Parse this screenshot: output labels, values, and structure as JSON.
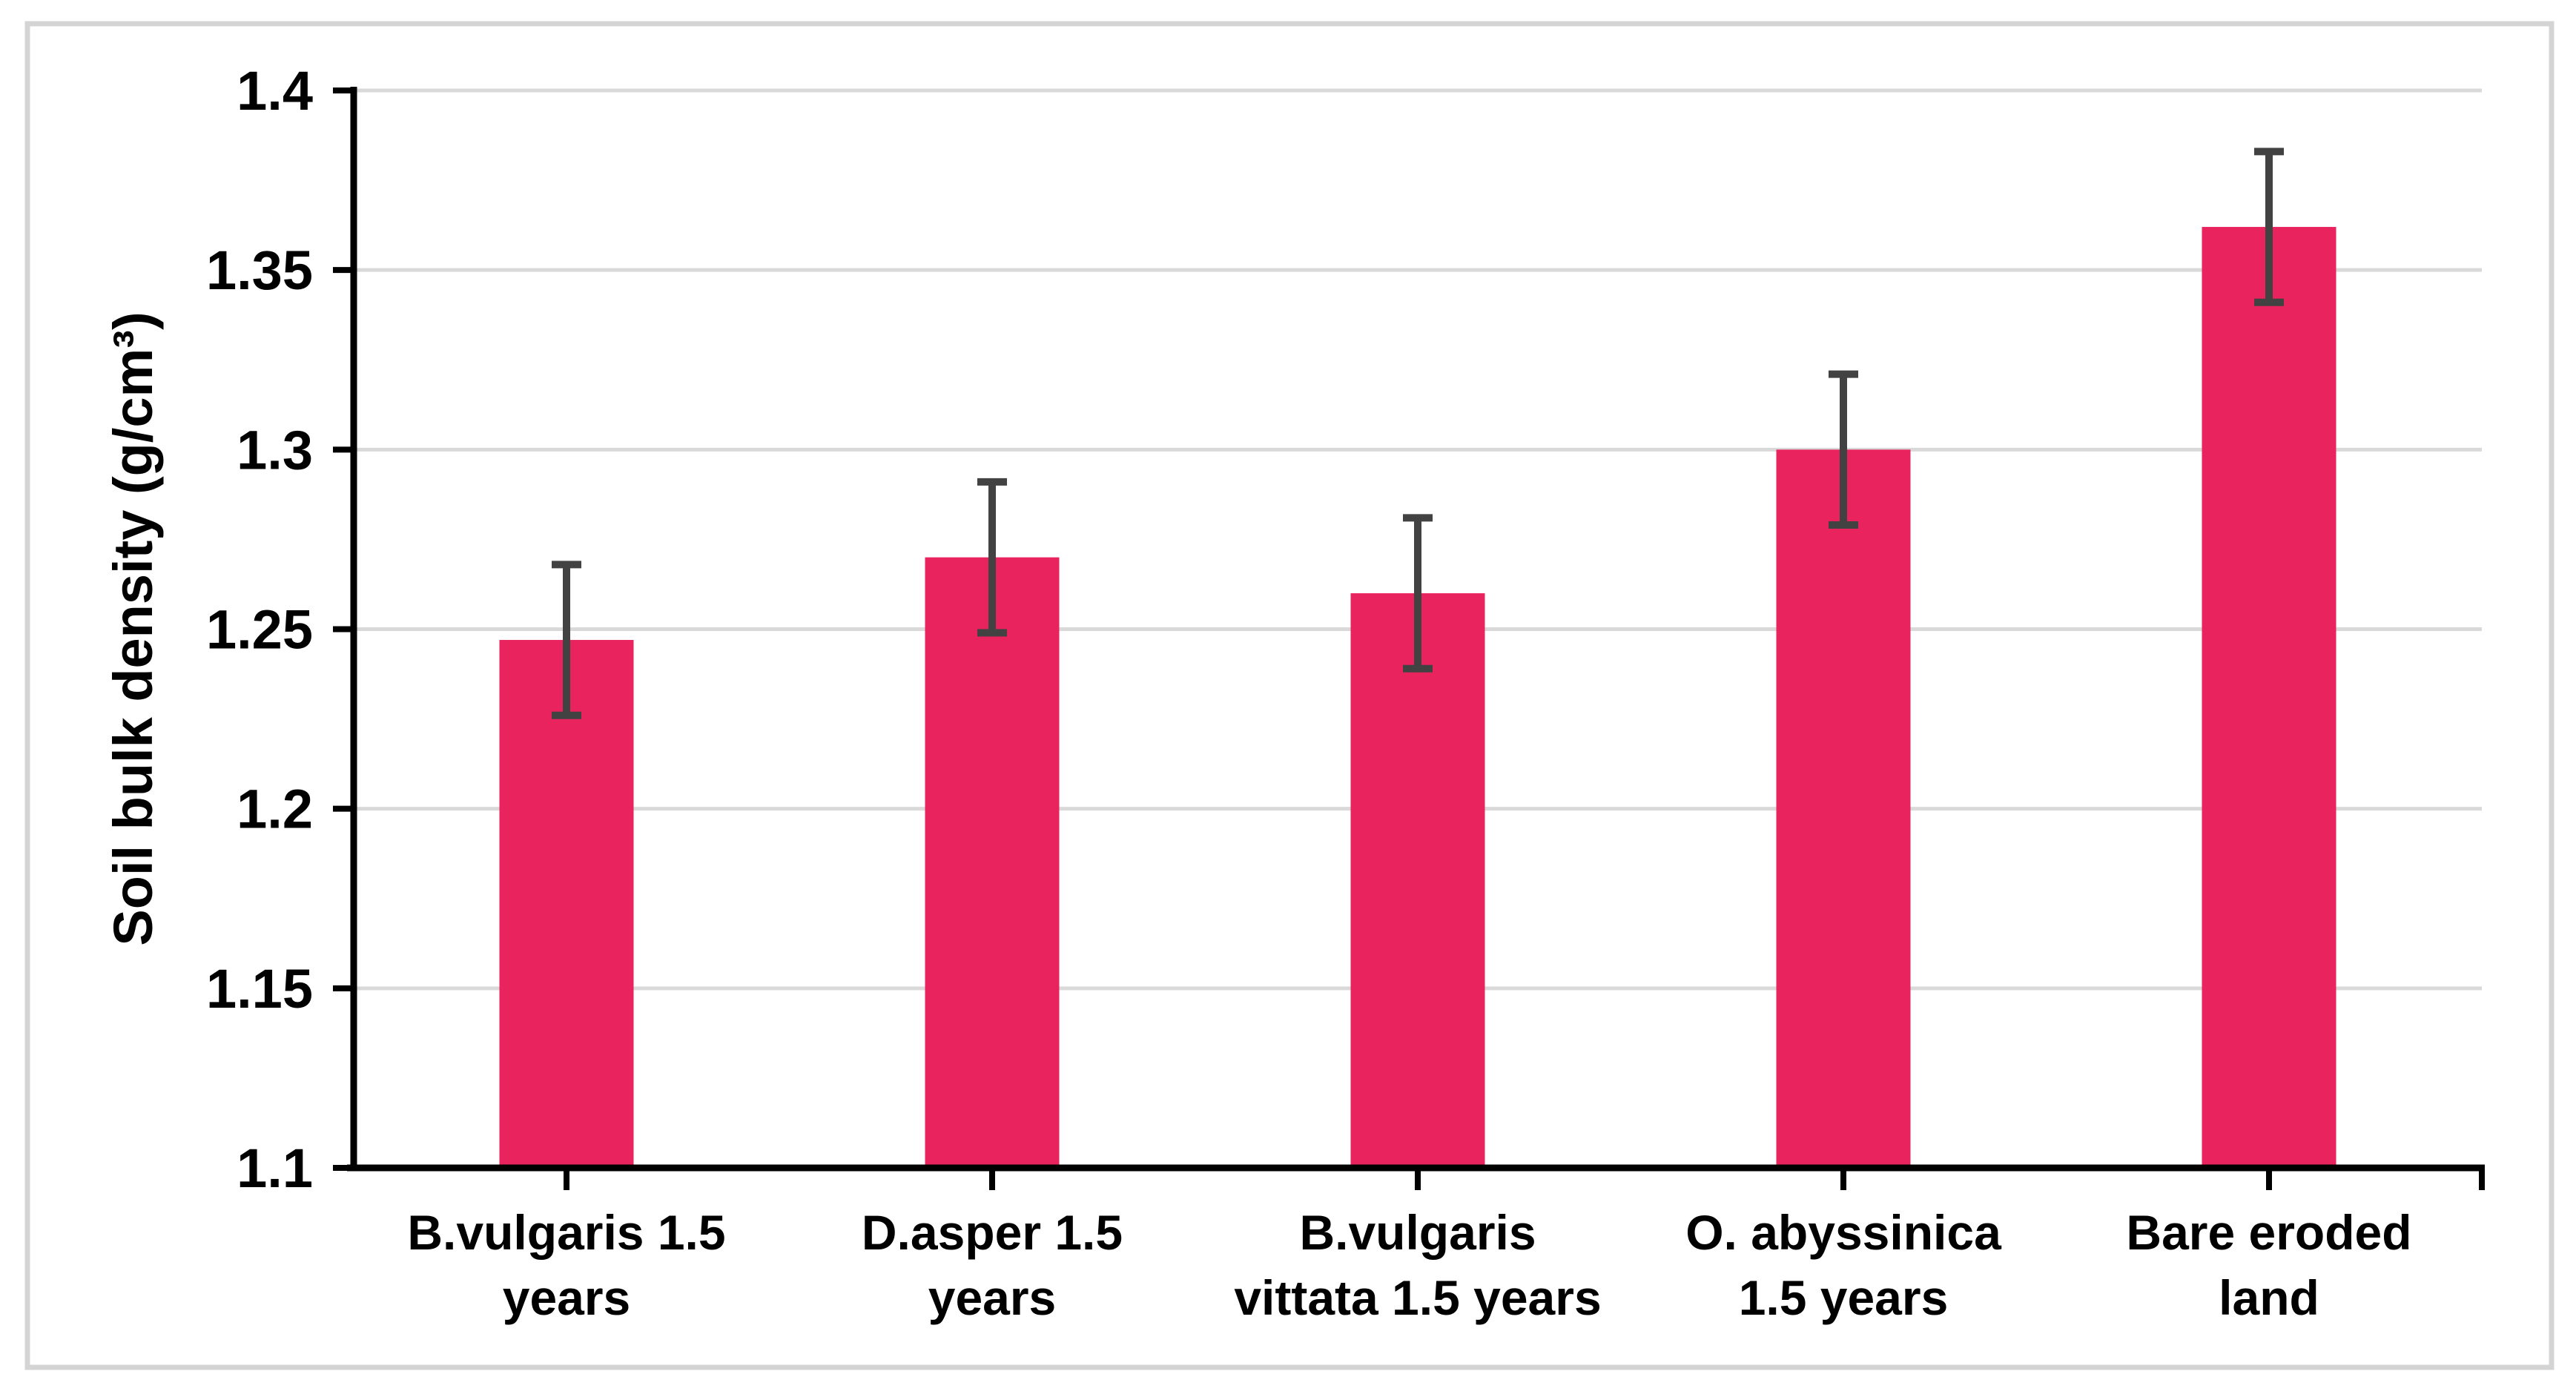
{
  "chart_data": {
    "type": "bar",
    "title": "",
    "xlabel": "",
    "ylabel": "Soil bulk density (g/cm³)",
    "categories": [
      "B.vulgaris 1.5 years",
      "D.asper 1.5 years",
      "B.vulgaris vittata 1.5 years",
      "O. abyssinica 1.5 years",
      "Bare eroded land"
    ],
    "category_label_lines": [
      [
        "B.vulgaris 1.5",
        "years"
      ],
      [
        "D.asper 1.5",
        "years"
      ],
      [
        "B.vulgaris",
        "vittata 1.5 years"
      ],
      [
        "O. abyssinica",
        "1.5 years"
      ],
      [
        "Bare eroded",
        "land"
      ]
    ],
    "values": [
      1.247,
      1.27,
      1.26,
      1.3,
      1.362
    ],
    "errors": [
      0.021,
      0.021,
      0.021,
      0.021,
      0.021
    ],
    "ylim": [
      1.1,
      1.4
    ],
    "ytick_step": 0.05,
    "ytick_labels": [
      "1.1",
      "1.15",
      "1.2",
      "1.25",
      "1.3",
      "1.35",
      "1.4"
    ],
    "grid": true,
    "legend": "none",
    "colors": {
      "bar": "#E8235E",
      "error_bar": "#424242",
      "gridline": "#D9D9D9",
      "axis": "#000000",
      "text": "#000000",
      "figure_border": "#D4D4D4",
      "background": "#FFFFFF"
    }
  }
}
